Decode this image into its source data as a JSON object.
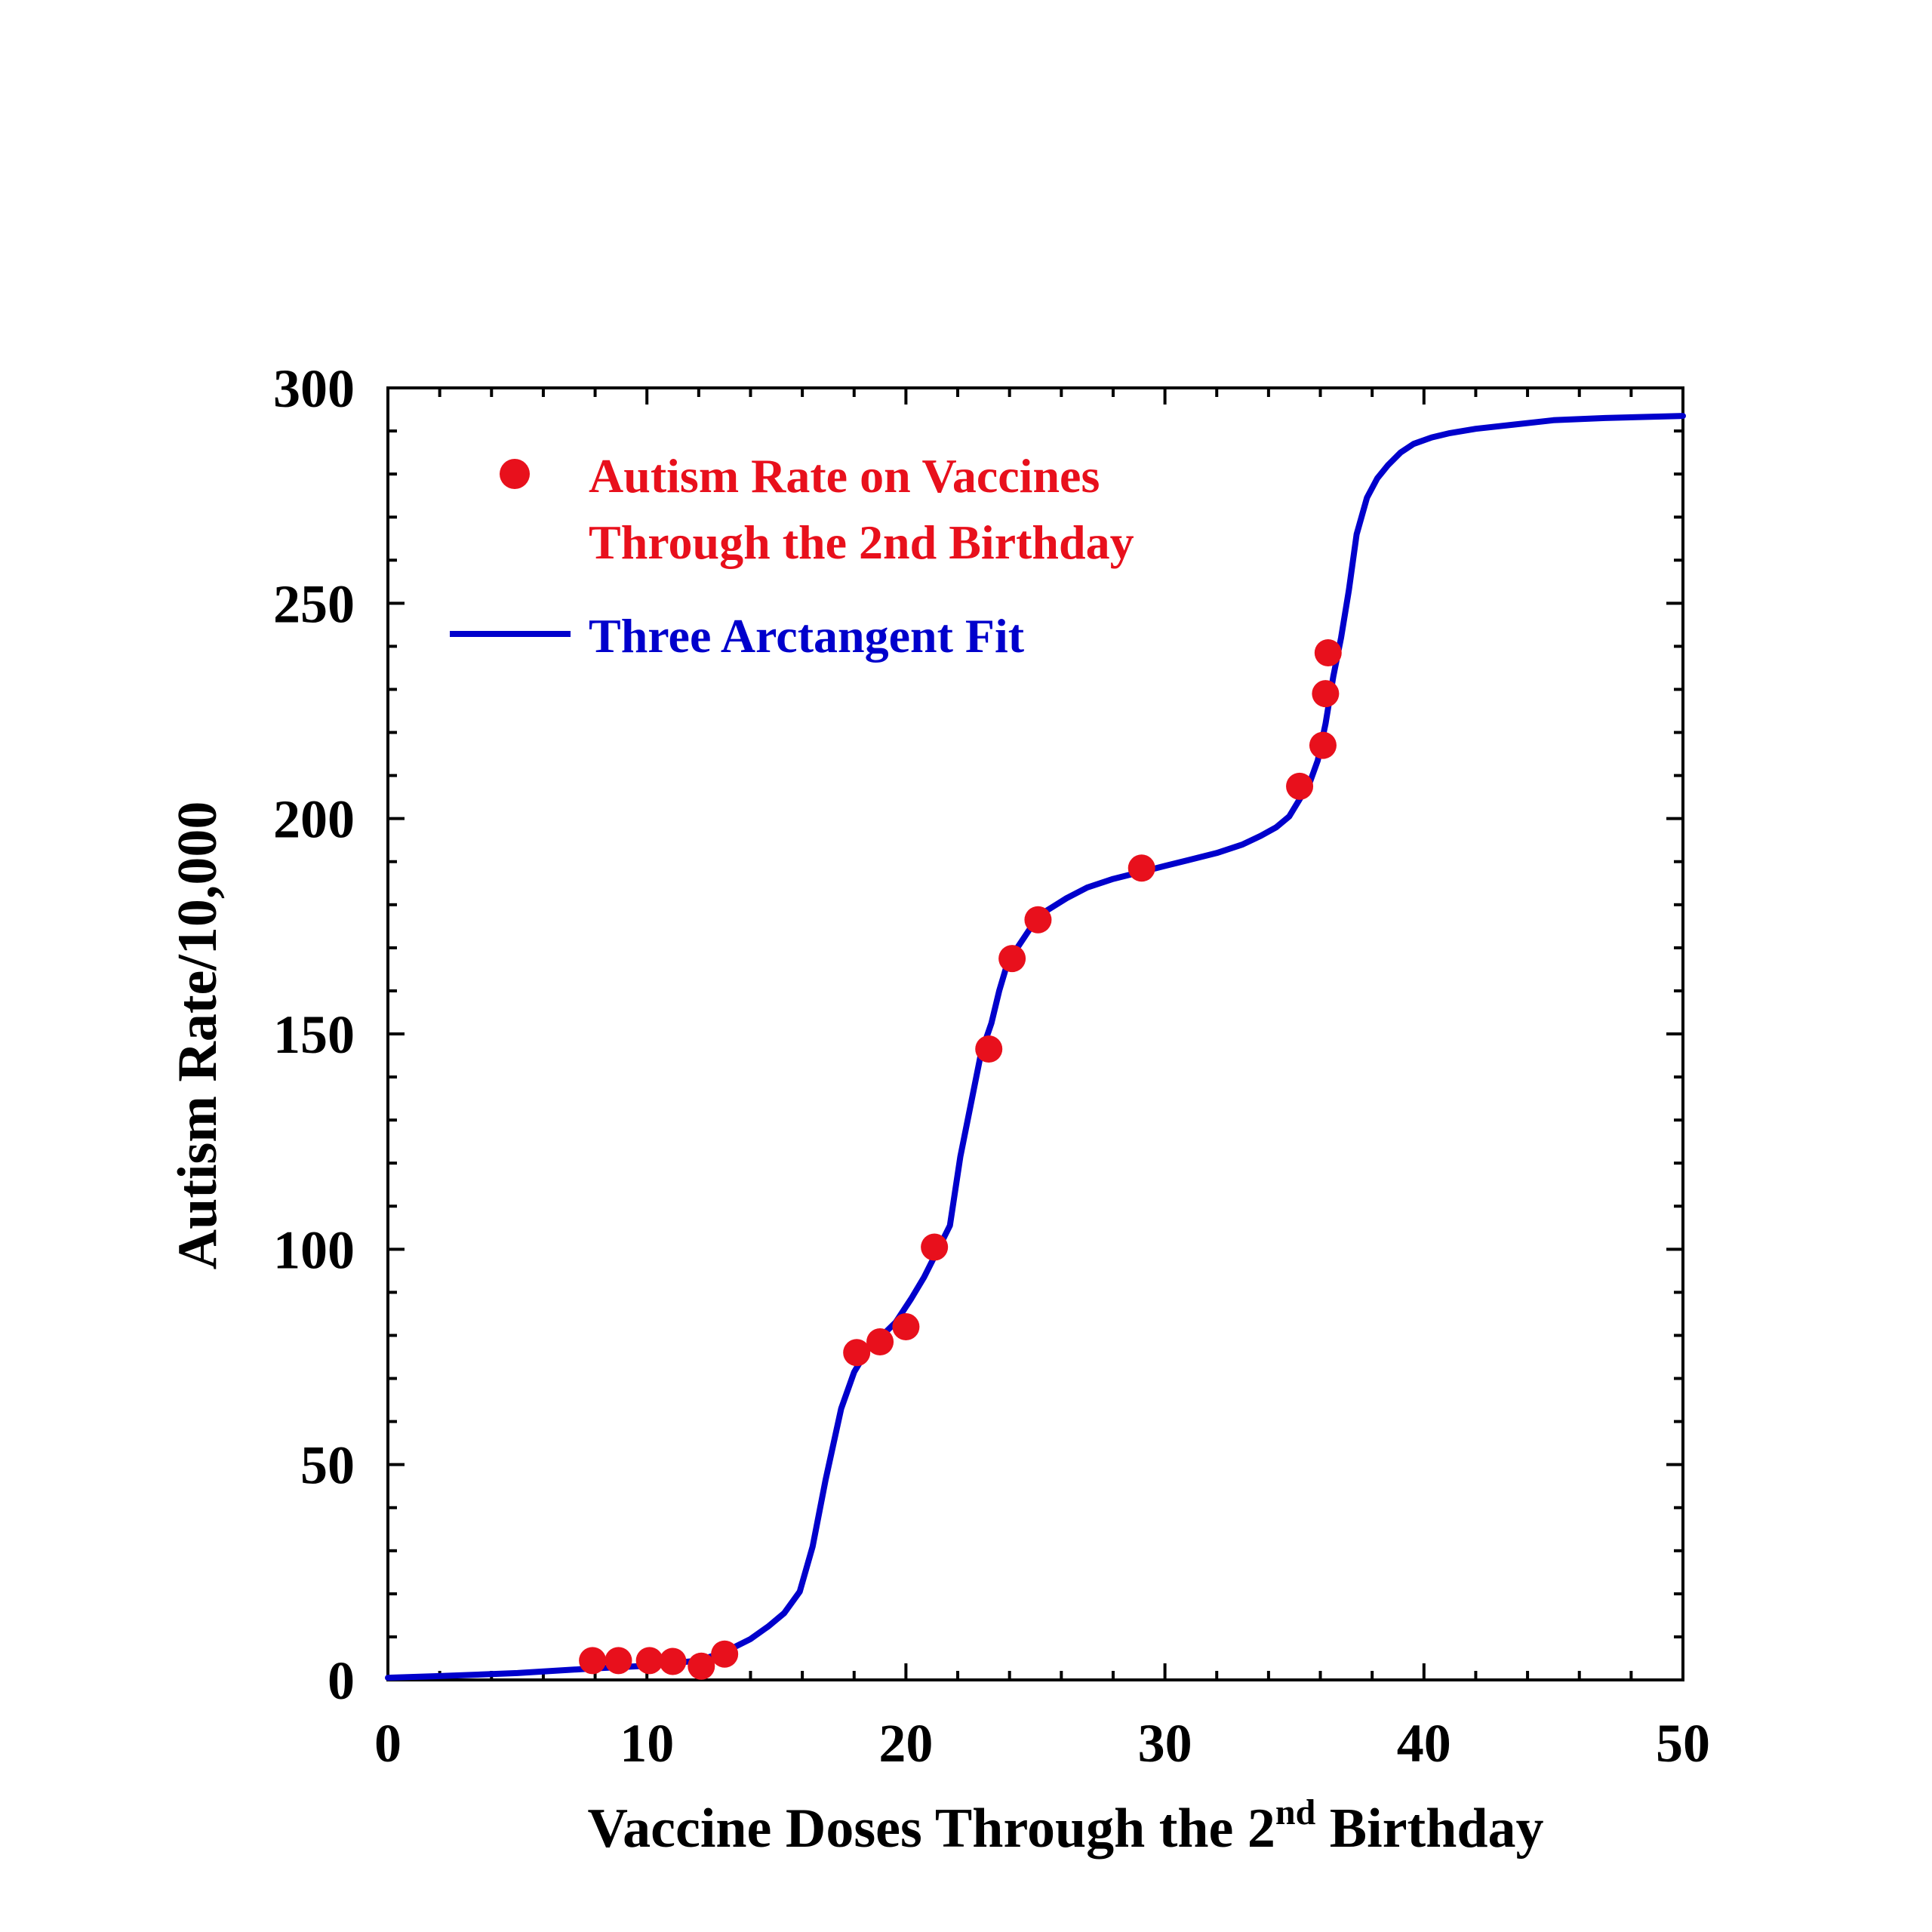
{
  "chart_data": {
    "type": "scatter",
    "title": "",
    "xlabel": {
      "prefix": "Vaccine Doses Through the 2",
      "superscript": "nd",
      "suffix": " Birthday"
    },
    "ylabel": "Autism Rate/10,000",
    "xlim": [
      0,
      50
    ],
    "ylim": [
      0,
      300
    ],
    "x_ticks": [
      0,
      10,
      20,
      30,
      40,
      50
    ],
    "y_ticks": [
      0,
      50,
      100,
      150,
      200,
      250,
      300
    ],
    "x_tick_labels": [
      "0",
      "10",
      "20",
      "30",
      "40",
      "50"
    ],
    "y_tick_labels": [
      "0",
      "50",
      "100",
      "150",
      "200",
      "250",
      "300"
    ],
    "x_minor_step": 2,
    "y_minor_step": 10,
    "grid": false,
    "legend_position": "top-left",
    "series": [
      {
        "name": "Autism Rate on Vaccines Through the 2nd Birthday",
        "legend_lines": [
          "Autism Rate on Vaccines",
          "Through the 2nd Birthday"
        ],
        "type": "scatter",
        "color": "#e8101c",
        "x": [
          7.9,
          8.9,
          10.1,
          11.0,
          12.1,
          13.0,
          18.1,
          19.0,
          20.0,
          21.1,
          23.2,
          24.1,
          25.1,
          29.1,
          35.2,
          36.1,
          36.2,
          36.3
        ],
        "y": [
          4.5,
          4.5,
          4.5,
          4.3,
          3.2,
          6.0,
          76,
          78.5,
          82,
          100.5,
          146.5,
          167.5,
          176.5,
          188.5,
          207.5,
          217,
          229,
          238.5
        ]
      },
      {
        "name": "Three Arctangent Fit",
        "legend_lines": [
          "Three Arctangent Fit"
        ],
        "type": "line",
        "color": "#0000cc",
        "x": [
          0,
          2,
          5,
          8,
          10,
          12,
          13,
          14,
          14.7,
          15.3,
          15.9,
          16.4,
          16.9,
          17.5,
          18,
          18.5,
          19,
          19.6,
          20.2,
          20.7,
          21.2,
          21.7,
          22.1,
          22.5,
          22.9,
          23.3,
          23.6,
          23.9,
          24.3,
          24.8,
          25.4,
          26.2,
          27,
          28,
          29,
          30,
          31,
          32,
          33,
          33.7,
          34.3,
          34.8,
          35.2,
          35.6,
          35.9,
          36.2,
          36.5,
          36.8,
          37.1,
          37.4,
          37.8,
          38.2,
          38.6,
          39.1,
          39.6,
          40.3,
          41,
          42,
          43.5,
          45,
          47,
          50
        ],
        "y": [
          0.5,
          0.9,
          1.6,
          2.7,
          3.3,
          4.5,
          6.5,
          9.5,
          12.5,
          15.5,
          20.5,
          31,
          46.5,
          63,
          71.5,
          76.5,
          79.5,
          83,
          88.5,
          93.5,
          99.5,
          105.5,
          121.5,
          133.5,
          145.5,
          152.5,
          160,
          166,
          170,
          174.5,
          178.5,
          181.5,
          184,
          186,
          187.5,
          189,
          190.5,
          192,
          194,
          196,
          198,
          200.5,
          204.5,
          208.5,
          213.5,
          222,
          233,
          242,
          253,
          266,
          274.5,
          279,
          282,
          285,
          287,
          288.5,
          289.5,
          290.5,
          291.5,
          292.5,
          293,
          293.5
        ]
      }
    ]
  }
}
